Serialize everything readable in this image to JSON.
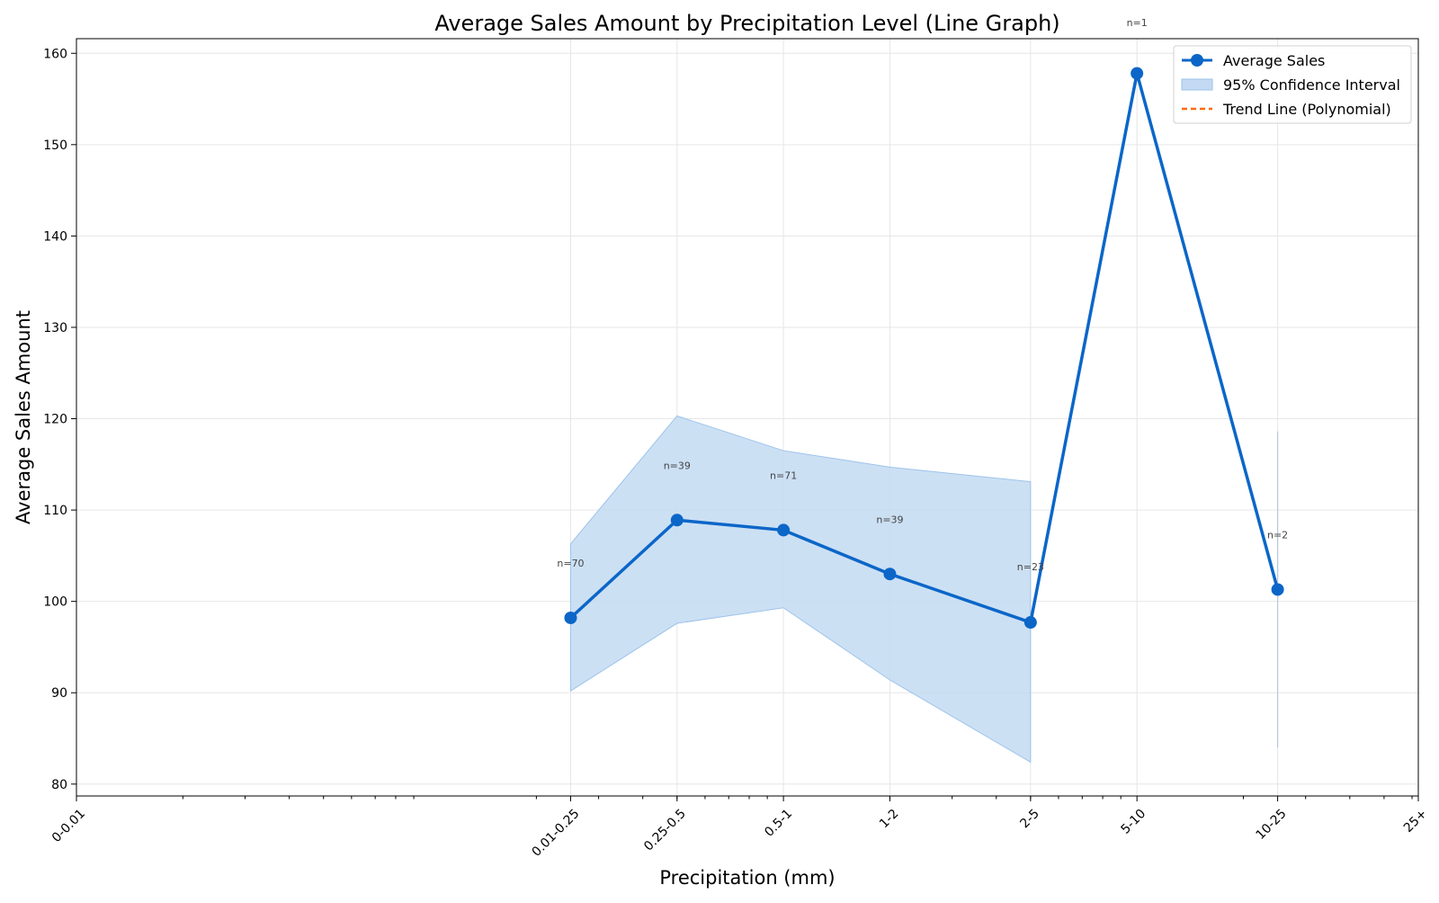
{
  "chart_data": {
    "type": "line",
    "title": "Average Sales Amount by Precipitation Level (Line Graph)",
    "xlabel": "Precipitation (mm)",
    "ylabel": "Average Sales Amount",
    "x_scale": "log",
    "ylim": [
      78.7,
      161.6
    ],
    "yticks": [
      80,
      90,
      100,
      110,
      120,
      130,
      140,
      150,
      160
    ],
    "xtick_labels": [
      "0-0.01",
      "0.01-0.25",
      "0.25-0.5",
      "0.5-1",
      "1-2",
      "2-5",
      "5-10",
      "10-25",
      "25+"
    ],
    "grid": true,
    "legend_position": "top-right",
    "colors": {
      "line": "#0b66c8",
      "ci_fill": "#c3daf2",
      "ci_edge": "#9ec3ea",
      "trend": "#ff6a00",
      "grid": "#e6e6e6"
    },
    "categories": [
      "0.01-0.25",
      "0.25-0.5",
      "0.5-1",
      "1-2",
      "2-5",
      "5-10",
      "10-25"
    ],
    "series": [
      {
        "name": "Average Sales",
        "values": [
          98.2,
          108.9,
          107.8,
          103.0,
          97.7,
          157.8,
          101.3
        ]
      }
    ],
    "confidence_interval": {
      "name": "95% Confidence Interval",
      "categories": [
        "0.01-0.25",
        "0.25-0.5",
        "0.5-1",
        "1-2",
        "2-5"
      ],
      "lower": [
        90.2,
        97.6,
        99.3,
        91.4,
        82.4
      ],
      "upper": [
        106.3,
        120.3,
        116.5,
        114.7,
        113.1
      ],
      "single_bar": {
        "category": "10-25",
        "lower": 84.0,
        "upper": 118.6
      }
    },
    "trend_line": {
      "name": "Trend Line (Polynomial)"
    },
    "sample_counts": [
      {
        "category": "0.01-0.25",
        "label": "n=70",
        "y": 103.8
      },
      {
        "category": "0.25-0.5",
        "label": "n=39",
        "y": 114.5
      },
      {
        "category": "0.5-1",
        "label": "n=71",
        "y": 113.4
      },
      {
        "category": "1-2",
        "label": "n=39",
        "y": 108.6
      },
      {
        "category": "2-5",
        "label": "n=23",
        "y": 103.4
      },
      {
        "category": "5-10",
        "label": "n=1",
        "y": 163.0
      },
      {
        "category": "10-25",
        "label": "n=2",
        "y": 106.9
      }
    ]
  }
}
